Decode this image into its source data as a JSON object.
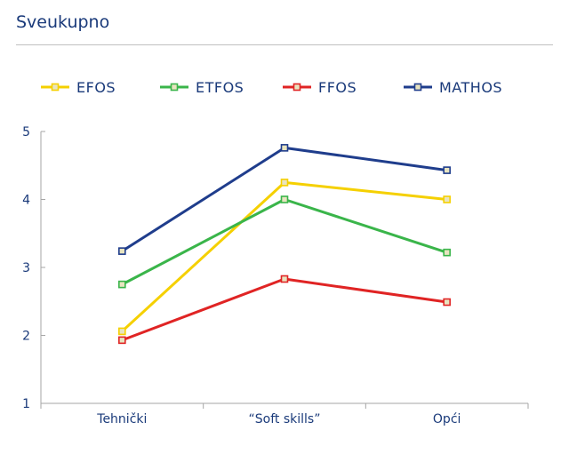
{
  "page": {
    "title": "Sveukupno"
  },
  "chart_data": {
    "type": "line",
    "categories": [
      "Tehnički",
      "“Soft skills”",
      "Opći"
    ],
    "ylim": [
      1,
      5
    ],
    "yticks": [
      1,
      2,
      3,
      4,
      5
    ],
    "grid": false,
    "legend_position": "top",
    "series": [
      {
        "name": "EFOS",
        "color": "#f5d000",
        "values": [
          2.06,
          4.25,
          4.0
        ]
      },
      {
        "name": "ETFOS",
        "color": "#3ab54a",
        "values": [
          2.75,
          4.0,
          3.22
        ]
      },
      {
        "name": "FFOS",
        "color": "#e02424",
        "values": [
          1.93,
          2.83,
          2.49
        ]
      },
      {
        "name": "MATHOS",
        "color": "#1f3d8c",
        "values": [
          3.24,
          4.76,
          4.43
        ]
      }
    ]
  }
}
